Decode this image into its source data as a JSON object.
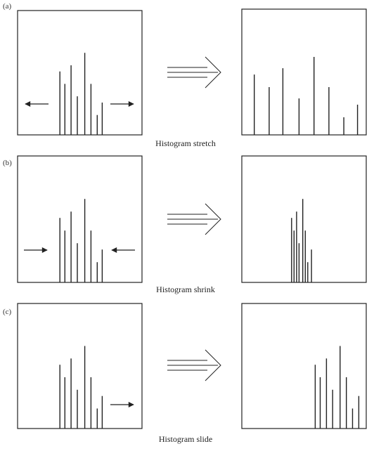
{
  "figure": {
    "colors": {
      "stroke": "#222222",
      "background": "#ffffff"
    },
    "rows": [
      {
        "label": "(a)",
        "caption": "Histogram stretch",
        "arrows": [
          "left-arrow-icon",
          "right-arrow-icon"
        ],
        "before": {
          "positions": [
            0.34,
            0.38,
            0.43,
            0.48,
            0.54,
            0.59,
            0.64,
            0.68
          ],
          "heights": [
            0.51,
            0.41,
            0.56,
            0.31,
            0.66,
            0.41,
            0.16,
            0.26
          ]
        },
        "after": {
          "positions": [
            0.1,
            0.22,
            0.33,
            0.46,
            0.58,
            0.7,
            0.82,
            0.93
          ],
          "heights": [
            0.48,
            0.38,
            0.53,
            0.29,
            0.62,
            0.38,
            0.14,
            0.24
          ]
        }
      },
      {
        "label": "(b)",
        "caption": "Histogram shrink",
        "arrows": [
          "right-arrow-icon",
          "left-arrow-icon"
        ],
        "before": {
          "positions": [
            0.34,
            0.38,
            0.43,
            0.48,
            0.54,
            0.59,
            0.64,
            0.68
          ],
          "heights": [
            0.51,
            0.41,
            0.56,
            0.31,
            0.66,
            0.41,
            0.16,
            0.26
          ]
        },
        "after": {
          "positions": [
            0.4,
            0.42,
            0.44,
            0.46,
            0.49,
            0.51,
            0.53,
            0.56
          ],
          "heights": [
            0.51,
            0.41,
            0.56,
            0.31,
            0.66,
            0.41,
            0.16,
            0.26
          ]
        }
      },
      {
        "label": "(c)",
        "caption": "Histogram slide",
        "arrows": [
          "right-arrow-icon"
        ],
        "before": {
          "positions": [
            0.34,
            0.38,
            0.43,
            0.48,
            0.54,
            0.59,
            0.64,
            0.68
          ],
          "heights": [
            0.51,
            0.41,
            0.56,
            0.31,
            0.66,
            0.41,
            0.16,
            0.26
          ]
        },
        "after": {
          "positions": [
            0.59,
            0.63,
            0.68,
            0.73,
            0.79,
            0.84,
            0.89,
            0.94
          ],
          "heights": [
            0.51,
            0.41,
            0.56,
            0.31,
            0.66,
            0.41,
            0.16,
            0.26
          ]
        }
      }
    ]
  }
}
